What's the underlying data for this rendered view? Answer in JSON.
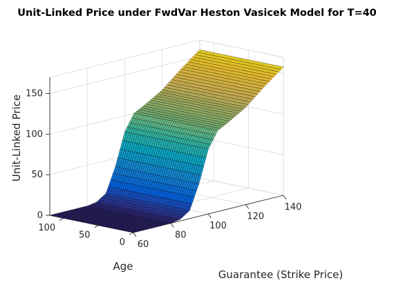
{
  "chart_data": {
    "type": "surface3d",
    "title": "Unit-Linked Price under FwdVar Heston Vasicek Model for T=40",
    "xlabel": "Guarantee (Strike Price)",
    "ylabel": "Age",
    "zlabel": "Unit-Linked Price",
    "xlim": [
      60,
      140
    ],
    "ylim": [
      0,
      120
    ],
    "zlim": [
      0,
      170
    ],
    "xticks": [
      "60",
      "80",
      "100",
      "120",
      "140"
    ],
    "yticks": [
      "0",
      "50",
      "100"
    ],
    "zticks": [
      "0",
      "50",
      "100",
      "150"
    ],
    "grid": true,
    "colormap": "parula",
    "surface": {
      "description_values": "price is ~0 for low guarantees, rises steeply between ~85 and ~105, then grows linearly with guarantee",
      "price_by_guarantee": {
        "x": [
          60,
          70,
          80,
          85,
          90,
          95,
          100,
          105,
          110,
          120,
          130,
          140
        ],
        "z": [
          0,
          0,
          0,
          2,
          10,
          40,
          80,
          100,
          106,
          120,
          140,
          158
        ]
      },
      "age_range": [
        0,
        120
      ]
    }
  }
}
